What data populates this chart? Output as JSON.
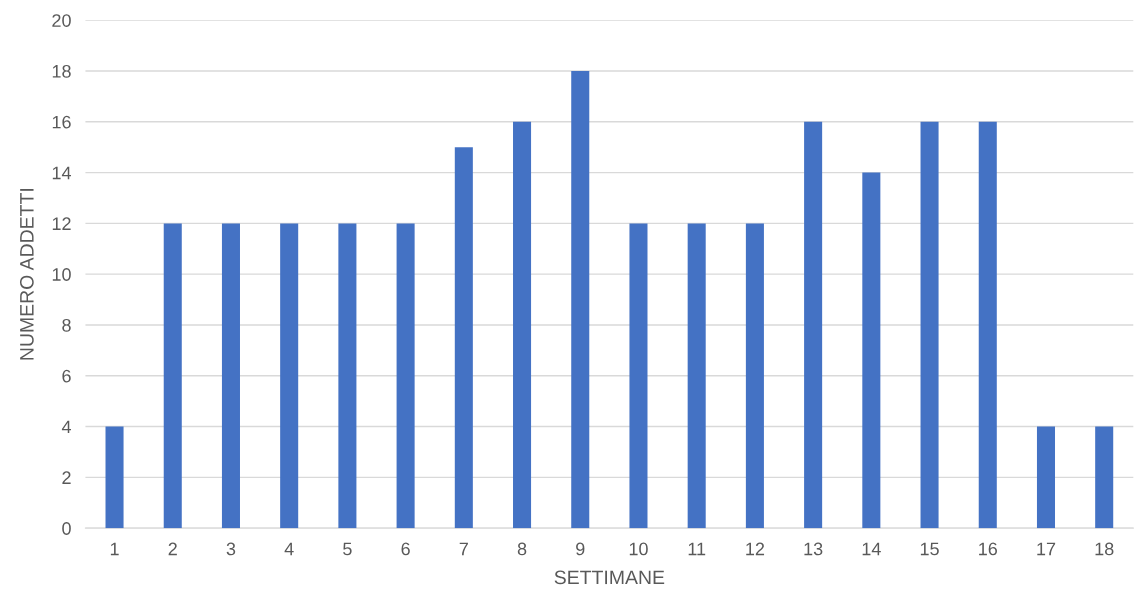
{
  "chart_data": {
    "type": "bar",
    "xlabel": "SETTIMANE",
    "ylabel": "NUMERO ADDETTI",
    "categories": [
      "1",
      "2",
      "3",
      "4",
      "5",
      "6",
      "7",
      "8",
      "9",
      "10",
      "11",
      "12",
      "13",
      "14",
      "15",
      "16",
      "17",
      "18"
    ],
    "values": [
      4,
      12,
      12,
      12,
      12,
      12,
      15,
      16,
      18,
      12,
      12,
      12,
      16,
      14,
      16,
      16,
      4,
      4
    ],
    "color": "#4472c4",
    "ylim": [
      0,
      20
    ],
    "yticks": [
      0,
      2,
      4,
      6,
      8,
      10,
      12,
      14,
      16,
      18,
      20
    ],
    "grid": "y"
  }
}
